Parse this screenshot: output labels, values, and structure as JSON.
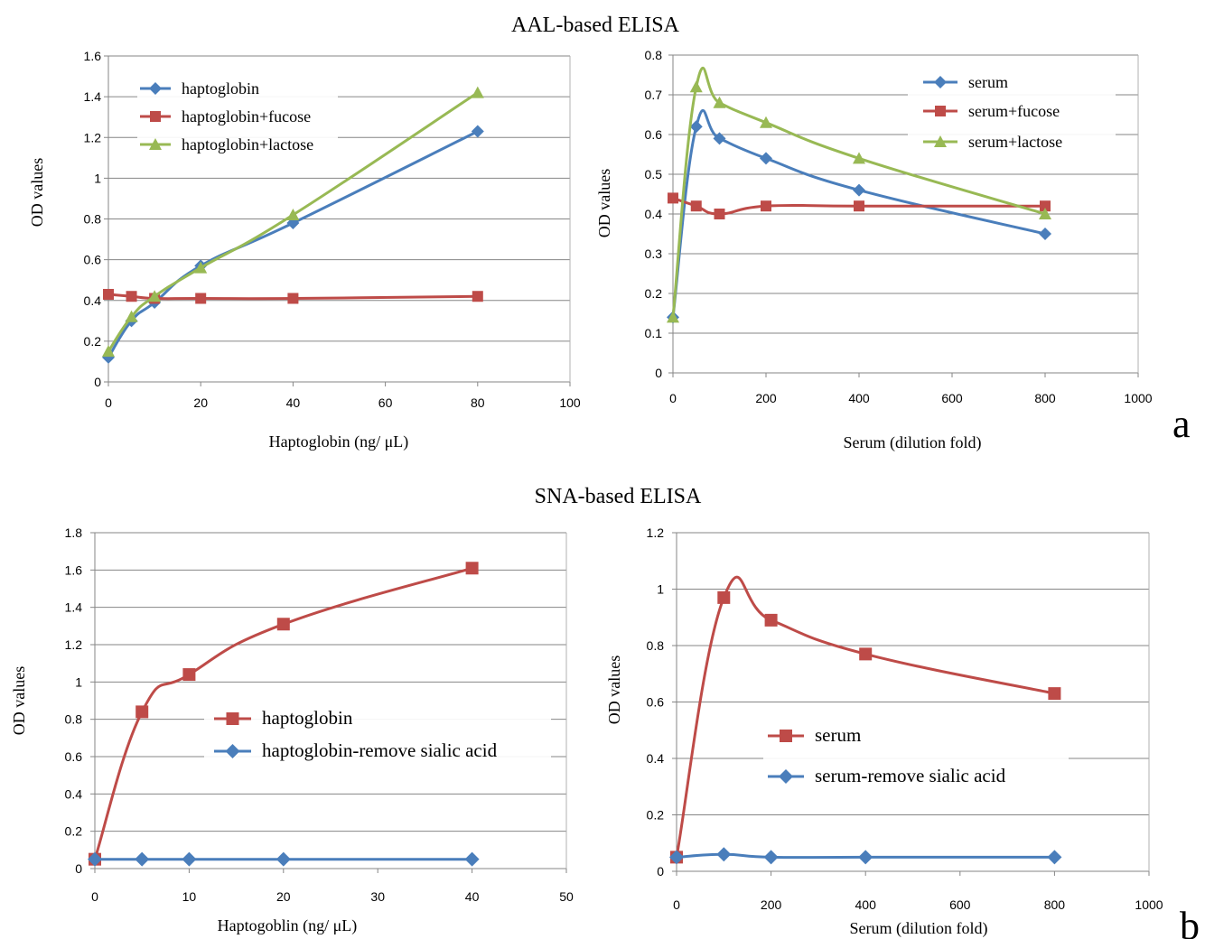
{
  "figure": {
    "title_top": "AAL-based ELISA",
    "title_bottom": "SNA-based ELISA",
    "label_a": "a",
    "label_b": "b"
  },
  "chart_data": [
    {
      "id": "aal-haptoglobin",
      "type": "line",
      "xlabel": "Haptoglobin (ng/ μL)",
      "ylabel": "OD values",
      "xlim": [
        0,
        100
      ],
      "ylim": [
        0,
        1.6
      ],
      "xticks": [
        "0",
        "20",
        "40",
        "60",
        "80",
        "100"
      ],
      "yticks": [
        "0",
        "0.2",
        "0.4",
        "0.6",
        "0.8",
        "1",
        "1.2",
        "1.4",
        "1.6"
      ],
      "grid": "horizontal",
      "legend_position": "top-left",
      "series": [
        {
          "name": "haptoglobin",
          "color": "#4a7ebb",
          "marker": "diamond",
          "x": [
            0,
            5,
            10,
            20,
            40,
            80
          ],
          "y": [
            0.12,
            0.3,
            0.39,
            0.57,
            0.78,
            1.23
          ]
        },
        {
          "name": "haptoglobin+fucose",
          "color": "#be4b48",
          "marker": "square",
          "x": [
            0,
            5,
            10,
            20,
            40,
            80
          ],
          "y": [
            0.43,
            0.42,
            0.41,
            0.41,
            0.41,
            0.42
          ]
        },
        {
          "name": "haptoglobin+lactose",
          "color": "#98b954",
          "marker": "triangle",
          "x": [
            0,
            5,
            10,
            20,
            40,
            80
          ],
          "y": [
            0.15,
            0.32,
            0.42,
            0.56,
            0.82,
            1.42
          ]
        }
      ]
    },
    {
      "id": "aal-serum",
      "type": "line",
      "xlabel": "Serum (dilution fold)",
      "ylabel": "OD values",
      "xlim": [
        0,
        1000
      ],
      "ylim": [
        0,
        0.8
      ],
      "xticks": [
        "0",
        "200",
        "400",
        "600",
        "800",
        "1000"
      ],
      "yticks": [
        "0",
        "0.1",
        "0.2",
        "0.3",
        "0.4",
        "0.5",
        "0.6",
        "0.7",
        "0.8"
      ],
      "grid": "horizontal",
      "legend_position": "top-right",
      "series": [
        {
          "name": "serum",
          "color": "#4a7ebb",
          "marker": "diamond",
          "x": [
            0,
            50,
            100,
            200,
            400,
            800
          ],
          "y": [
            0.14,
            0.62,
            0.59,
            0.54,
            0.46,
            0.35
          ]
        },
        {
          "name": "serum+fucose",
          "color": "#be4b48",
          "marker": "square",
          "x": [
            0,
            50,
            100,
            200,
            400,
            800
          ],
          "y": [
            0.44,
            0.42,
            0.4,
            0.42,
            0.42,
            0.42
          ]
        },
        {
          "name": "serum+lactose",
          "color": "#98b954",
          "marker": "triangle",
          "x": [
            0,
            50,
            100,
            200,
            400,
            800
          ],
          "y": [
            0.14,
            0.72,
            0.68,
            0.63,
            0.54,
            0.4
          ]
        }
      ]
    },
    {
      "id": "sna-haptoglobin",
      "type": "line",
      "xlabel": "Haptogoblin (ng/ μL)",
      "ylabel": "OD values",
      "xlim": [
        0,
        50
      ],
      "ylim": [
        0,
        1.8
      ],
      "xticks": [
        "0",
        "10",
        "20",
        "30",
        "40",
        "50"
      ],
      "yticks": [
        "0",
        "0.2",
        "0.4",
        "0.6",
        "0.8",
        "1",
        "1.2",
        "1.4",
        "1.6",
        "1.8"
      ],
      "grid": "horizontal",
      "legend_position": "center-right",
      "series": [
        {
          "name": "haptoglobin",
          "color": "#be4b48",
          "marker": "square",
          "x": [
            0,
            5,
            10,
            20,
            40
          ],
          "y": [
            0.05,
            0.84,
            1.04,
            1.31,
            1.61
          ]
        },
        {
          "name": "haptoglobin-remove sialic acid",
          "color": "#4a7ebb",
          "marker": "diamond",
          "x": [
            0,
            5,
            10,
            20,
            40
          ],
          "y": [
            0.05,
            0.05,
            0.05,
            0.05,
            0.05
          ]
        }
      ]
    },
    {
      "id": "sna-serum",
      "type": "line",
      "xlabel": "Serum (dilution fold)",
      "ylabel": "OD values",
      "xlim": [
        0,
        1000
      ],
      "ylim": [
        0,
        1.2
      ],
      "xticks": [
        "0",
        "200",
        "400",
        "600",
        "800",
        "1000"
      ],
      "yticks": [
        "0",
        "0.2",
        "0.4",
        "0.6",
        "0.8",
        "1",
        "1.2"
      ],
      "grid": "horizontal",
      "legend_position": "center-right",
      "series": [
        {
          "name": "serum",
          "color": "#be4b48",
          "marker": "square",
          "x": [
            0,
            100,
            200,
            400,
            800
          ],
          "y": [
            0.05,
            0.97,
            0.89,
            0.77,
            0.63
          ]
        },
        {
          "name": "serum-remove sialic acid",
          "color": "#4a7ebb",
          "marker": "diamond",
          "x": [
            0,
            100,
            200,
            400,
            800
          ],
          "y": [
            0.05,
            0.06,
            0.05,
            0.05,
            0.05
          ]
        }
      ]
    }
  ]
}
